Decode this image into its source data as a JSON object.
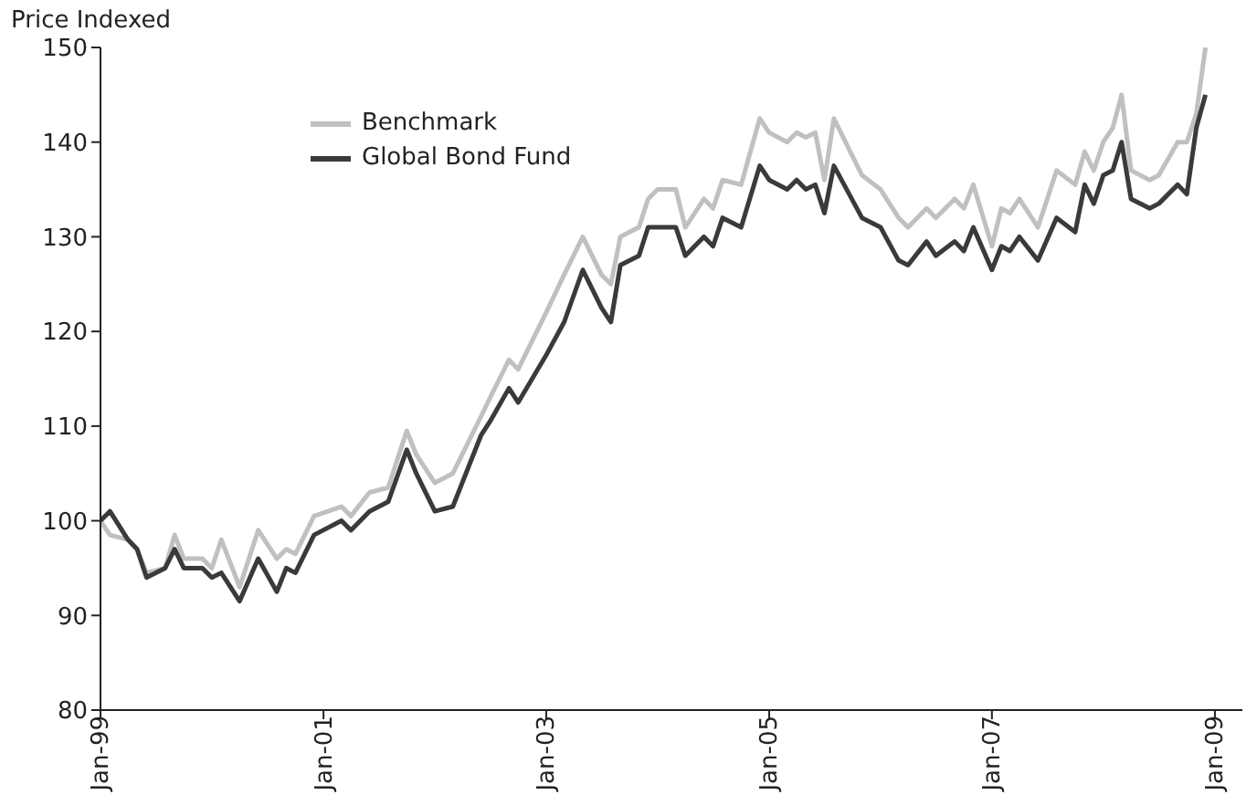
{
  "chart_data": {
    "type": "line",
    "ylabel": "Price Indexed",
    "x": [
      "1999-01",
      "1999-02",
      "1999-04",
      "1999-05",
      "1999-06",
      "1999-08",
      "1999-09",
      "1999-10",
      "1999-12",
      "2000-01",
      "2000-02",
      "2000-04",
      "2000-06",
      "2000-08",
      "2000-09",
      "2000-10",
      "2000-12",
      "2001-03",
      "2001-04",
      "2001-06",
      "2001-08",
      "2001-10",
      "2001-11",
      "2002-01",
      "2002-03",
      "2002-06",
      "2002-07",
      "2002-09",
      "2002-10",
      "2003-01",
      "2003-03",
      "2003-05",
      "2003-07",
      "2003-08",
      "2003-09",
      "2003-11",
      "2003-12",
      "2004-01",
      "2004-03",
      "2004-04",
      "2004-06",
      "2004-07",
      "2004-08",
      "2004-10",
      "2004-12",
      "2005-01",
      "2005-03",
      "2005-04",
      "2005-05",
      "2005-06",
      "2005-07",
      "2005-08",
      "2005-11",
      "2006-01",
      "2006-03",
      "2006-04",
      "2006-06",
      "2006-07",
      "2006-09",
      "2006-10",
      "2006-11",
      "2007-01",
      "2007-02",
      "2007-03",
      "2007-04",
      "2007-06",
      "2007-08",
      "2007-10",
      "2007-11",
      "2007-12",
      "2008-01",
      "2008-02",
      "2008-03",
      "2008-04",
      "2008-06",
      "2008-07",
      "2008-09",
      "2008-10",
      "2008-11",
      "2008-12"
    ],
    "series": [
      {
        "name": "Benchmark",
        "color": "#c0c0c0",
        "values": [
          100,
          98.5,
          98,
          97,
          94.5,
          95,
          98.5,
          96,
          96,
          95,
          98,
          93,
          99,
          96,
          97,
          96.5,
          100.5,
          101.5,
          100.5,
          103,
          103.5,
          109.5,
          107,
          104,
          105,
          111,
          113,
          117,
          116,
          122,
          126,
          130,
          126,
          125,
          130,
          131,
          134,
          135,
          135,
          131,
          134,
          133,
          136,
          135.5,
          142.5,
          141,
          140,
          141,
          140.5,
          141,
          136,
          142.5,
          136.5,
          135,
          132,
          131,
          133,
          132,
          134,
          133,
          135.5,
          129,
          133,
          132.5,
          134,
          131,
          137,
          135.5,
          139,
          137,
          140,
          141.5,
          145,
          137,
          136,
          136.5,
          140,
          140,
          143,
          150
        ]
      },
      {
        "name": "Global Bond Fund",
        "color": "#3a3a3a",
        "values": [
          100,
          101,
          98,
          97,
          94,
          95,
          97,
          95,
          95,
          94,
          94.5,
          91.5,
          96,
          92.5,
          95,
          94.5,
          98.5,
          100,
          99,
          101,
          102,
          107.5,
          105,
          101,
          101.5,
          109,
          110.5,
          114,
          112.5,
          117.5,
          121,
          126.5,
          122.5,
          121,
          127,
          128,
          131,
          131,
          131,
          128,
          130,
          129,
          132,
          131,
          137.5,
          136,
          135,
          136,
          135,
          135.5,
          132.5,
          137.5,
          132,
          131,
          127.5,
          127,
          129.5,
          128,
          129.5,
          128.5,
          131,
          126.5,
          129,
          128.5,
          130,
          127.5,
          132,
          130.5,
          135.5,
          133.5,
          136.5,
          137,
          140,
          134,
          133,
          133.5,
          135.5,
          134.5,
          141.5,
          145
        ]
      }
    ],
    "xlim": [
      "1999-01",
      "2009-04"
    ],
    "xticks": [
      {
        "value": "1999-01",
        "label": "Jan-99"
      },
      {
        "value": "2001-01",
        "label": "Jan-01"
      },
      {
        "value": "2003-01",
        "label": "Jan-03"
      },
      {
        "value": "2005-01",
        "label": "Jan-05"
      },
      {
        "value": "2007-01",
        "label": "Jan-07"
      },
      {
        "value": "2009-01",
        "label": "Jan-09"
      }
    ],
    "ylim": [
      80,
      150
    ],
    "yticks": [
      80,
      90,
      100,
      110,
      120,
      130,
      140,
      150
    ],
    "legend": "top left",
    "grid": false,
    "marker": "none",
    "line_style": "solid"
  }
}
